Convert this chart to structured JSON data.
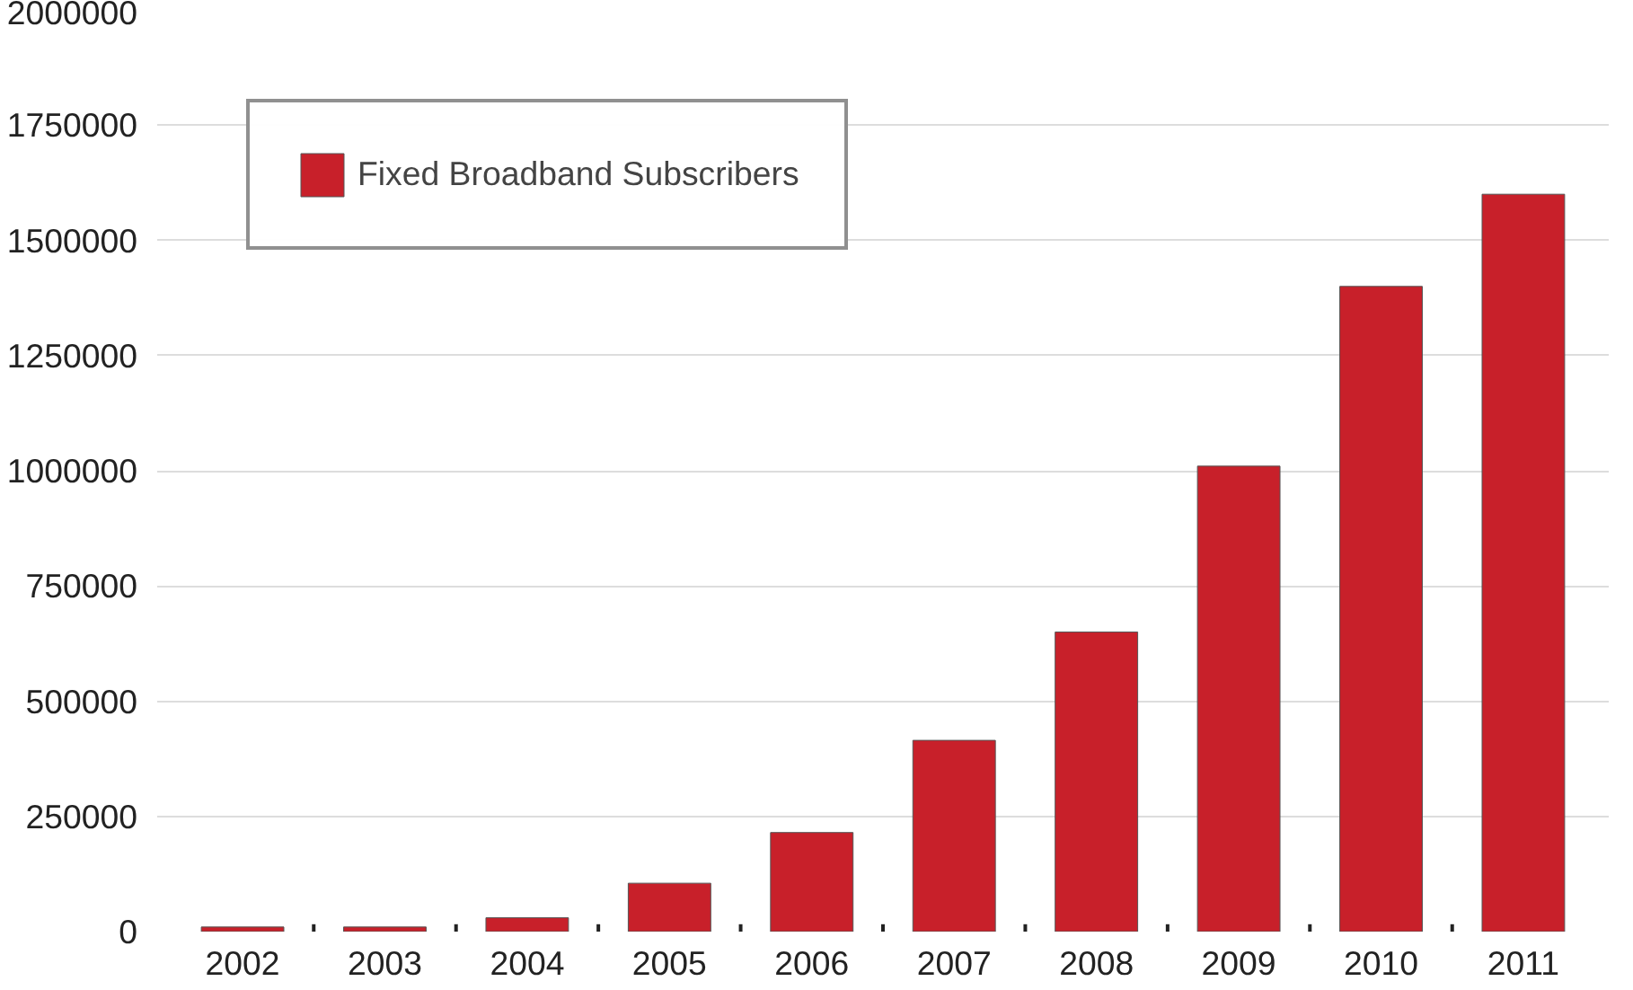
{
  "chart_data": {
    "type": "bar",
    "categories": [
      "2002",
      "2003",
      "2004",
      "2005",
      "2006",
      "2007",
      "2008",
      "2009",
      "2010",
      "2011"
    ],
    "series": [
      {
        "name": "Fixed Broadband Subscribers",
        "color": "#c8202a",
        "values": [
          10000,
          10000,
          30000,
          105000,
          215000,
          415000,
          650000,
          1010000,
          1400000,
          1600000
        ]
      }
    ],
    "ylim": [
      0,
      2000000
    ],
    "yticks": [
      0,
      250000,
      500000,
      750000,
      1000000,
      1250000,
      1500000,
      1750000,
      2000000
    ],
    "grid": "y",
    "legend": "top left"
  }
}
